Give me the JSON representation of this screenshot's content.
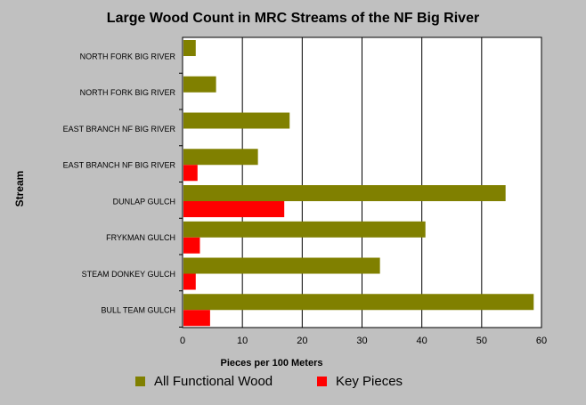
{
  "chart_data": {
    "type": "bar",
    "orientation": "horizontal",
    "title": "Large Wood Count in MRC Streams of the NF Big River",
    "xlabel": "Pieces per 100 Meters",
    "ylabel": "Stream",
    "xlim": [
      0,
      60
    ],
    "xticks": [
      0,
      10,
      20,
      30,
      40,
      50,
      60
    ],
    "grid": "vertical",
    "legend_position": "bottom",
    "categories": [
      "NORTH FORK BIG RIVER",
      "NORTH FORK BIG RIVER",
      "EAST BRANCH NF BIG RIVER",
      "EAST BRANCH NF BIG RIVER",
      "DUNLAP GULCH",
      "FRYKMAN GULCH",
      "STEAM DONKEY GULCH",
      "BULL TEAM GULCH"
    ],
    "series": [
      {
        "name": "All Functional Wood",
        "color": "#808000",
        "values": [
          2.2,
          5.6,
          17.9,
          12.6,
          54.0,
          40.6,
          33.0,
          58.7
        ]
      },
      {
        "name": "Key Pieces",
        "color": "#ff0000",
        "values": [
          0,
          0,
          0,
          2.5,
          17.0,
          2.9,
          2.2,
          4.6
        ]
      }
    ]
  }
}
